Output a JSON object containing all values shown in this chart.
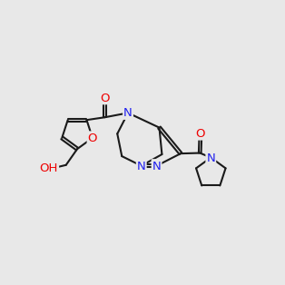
{
  "bg": "#e8e8e8",
  "bc": "#1a1a1a",
  "nc": "#2020ee",
  "oc": "#ee0000",
  "lw": 1.5,
  "fs": 9.5
}
